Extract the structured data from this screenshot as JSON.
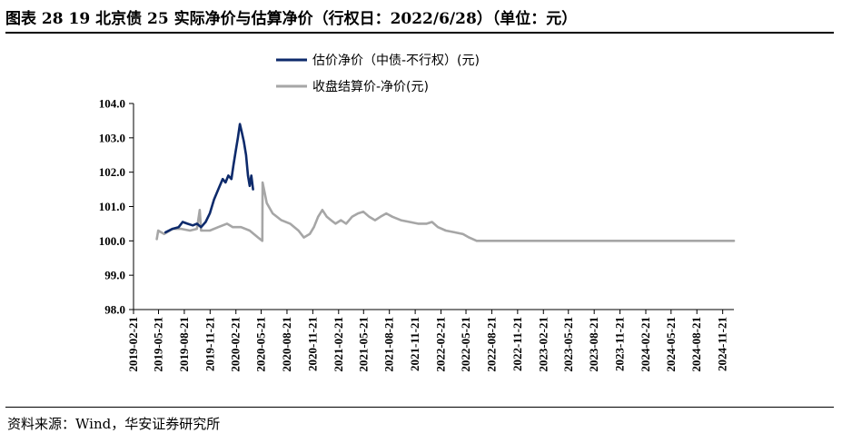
{
  "header": {
    "title": "图表 28 19 北京债 25 实际净价与估算净价（行权日：2022/6/28）（单位：元）"
  },
  "footer": {
    "source": "资料来源：Wind，华安证券研究所"
  },
  "colors": {
    "estimate": "#0d2a6b",
    "actual": "#a6a6a6",
    "axis": "#000000"
  },
  "chart_data": {
    "type": "line",
    "title": "",
    "xlabel": "",
    "ylabel": "",
    "ylim": [
      98.0,
      104.0
    ],
    "yticks": [
      "104.0",
      "103.0",
      "102.0",
      "101.0",
      "100.0",
      "99.0",
      "98.0"
    ],
    "xrange": [
      "2019-02-21",
      "2024-12-31"
    ],
    "xticks": [
      "2019-02-21",
      "2019-05-21",
      "2019-08-21",
      "2019-11-21",
      "2020-02-21",
      "2020-05-21",
      "2020-08-21",
      "2020-11-21",
      "2021-02-21",
      "2021-05-21",
      "2021-08-21",
      "2021-11-21",
      "2022-02-21",
      "2022-05-21",
      "2022-08-21",
      "2022-11-21",
      "2023-02-21",
      "2023-05-21",
      "2023-08-21",
      "2023-11-21",
      "2024-02-21",
      "2024-05-21",
      "2024-08-21",
      "2024-11-21"
    ],
    "legend": "top-left",
    "series": [
      {
        "name": "估价净价（中债-不行权）(元)",
        "color": "#0d2a6b",
        "points": [
          [
            "2019-06-15",
            100.25
          ],
          [
            "2019-07-10",
            100.35
          ],
          [
            "2019-08-01",
            100.4
          ],
          [
            "2019-08-15",
            100.55
          ],
          [
            "2019-09-01",
            100.5
          ],
          [
            "2019-09-20",
            100.45
          ],
          [
            "2019-10-05",
            100.5
          ],
          [
            "2019-10-20",
            100.4
          ],
          [
            "2019-11-05",
            100.55
          ],
          [
            "2019-11-20",
            100.8
          ],
          [
            "2019-12-05",
            101.2
          ],
          [
            "2019-12-20",
            101.5
          ],
          [
            "2020-01-05",
            101.8
          ],
          [
            "2020-01-15",
            101.7
          ],
          [
            "2020-01-25",
            101.9
          ],
          [
            "2020-02-05",
            101.8
          ],
          [
            "2020-02-12",
            102.2
          ],
          [
            "2020-02-20",
            102.6
          ],
          [
            "2020-02-28",
            103.0
          ],
          [
            "2020-03-06",
            103.4
          ],
          [
            "2020-03-12",
            103.2
          ],
          [
            "2020-03-20",
            102.9
          ],
          [
            "2020-03-28",
            102.5
          ],
          [
            "2020-04-04",
            101.9
          ],
          [
            "2020-04-10",
            101.6
          ],
          [
            "2020-04-16",
            101.9
          ],
          [
            "2020-04-22",
            101.5
          ]
        ]
      },
      {
        "name": "收盘结算价-净价(元)",
        "color": "#a6a6a6",
        "points": [
          [
            "2019-05-15",
            100.05
          ],
          [
            "2019-05-20",
            100.3
          ],
          [
            "2019-06-10",
            100.2
          ],
          [
            "2019-07-10",
            100.35
          ],
          [
            "2019-08-10",
            100.35
          ],
          [
            "2019-09-10",
            100.3
          ],
          [
            "2019-10-05",
            100.35
          ],
          [
            "2019-10-15",
            100.9
          ],
          [
            "2019-10-20",
            100.3
          ],
          [
            "2019-11-20",
            100.3
          ],
          [
            "2019-12-20",
            100.4
          ],
          [
            "2020-01-20",
            100.5
          ],
          [
            "2020-02-10",
            100.4
          ],
          [
            "2020-03-10",
            100.4
          ],
          [
            "2020-04-10",
            100.3
          ],
          [
            "2020-05-10",
            100.1
          ],
          [
            "2020-05-25",
            100.0
          ],
          [
            "2020-05-26",
            101.7
          ],
          [
            "2020-06-10",
            101.1
          ],
          [
            "2020-07-01",
            100.8
          ],
          [
            "2020-08-01",
            100.6
          ],
          [
            "2020-09-01",
            100.5
          ],
          [
            "2020-10-01",
            100.3
          ],
          [
            "2020-10-20",
            100.1
          ],
          [
            "2020-11-10",
            100.2
          ],
          [
            "2020-11-25",
            100.4
          ],
          [
            "2020-12-10",
            100.7
          ],
          [
            "2020-12-25",
            100.9
          ],
          [
            "2021-01-10",
            100.7
          ],
          [
            "2021-01-25",
            100.6
          ],
          [
            "2021-02-10",
            100.5
          ],
          [
            "2021-03-01",
            100.6
          ],
          [
            "2021-03-20",
            100.5
          ],
          [
            "2021-04-10",
            100.7
          ],
          [
            "2021-05-01",
            100.8
          ],
          [
            "2021-05-20",
            100.85
          ],
          [
            "2021-06-10",
            100.7
          ],
          [
            "2021-07-01",
            100.6
          ],
          [
            "2021-07-20",
            100.7
          ],
          [
            "2021-08-10",
            100.8
          ],
          [
            "2021-09-01",
            100.7
          ],
          [
            "2021-10-01",
            100.6
          ],
          [
            "2021-11-01",
            100.55
          ],
          [
            "2021-12-01",
            100.5
          ],
          [
            "2022-01-01",
            100.5
          ],
          [
            "2022-01-20",
            100.55
          ],
          [
            "2022-02-10",
            100.4
          ],
          [
            "2022-03-10",
            100.3
          ],
          [
            "2022-04-10",
            100.25
          ],
          [
            "2022-05-10",
            100.2
          ],
          [
            "2022-06-01",
            100.1
          ],
          [
            "2022-06-28",
            100.0
          ],
          [
            "2024-12-31",
            100.0
          ]
        ]
      }
    ]
  }
}
